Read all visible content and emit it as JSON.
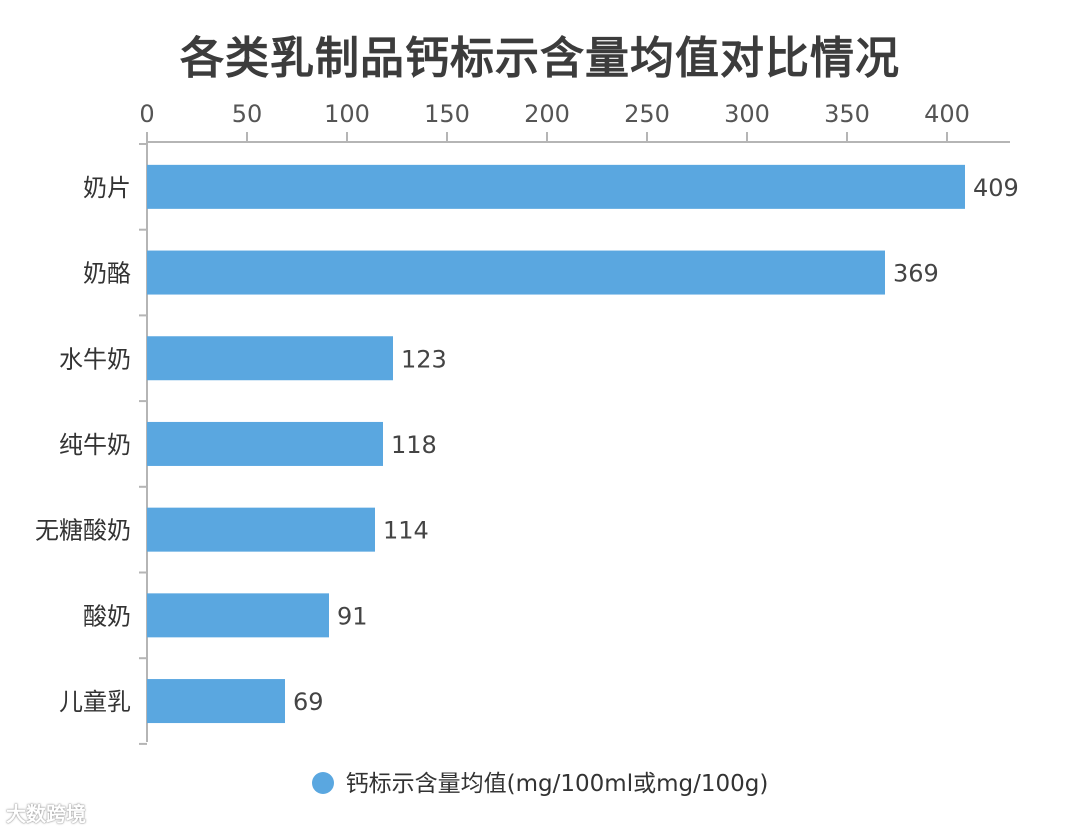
{
  "chart_data": {
    "type": "bar",
    "orientation": "horizontal",
    "title": "各类乳制品钙标示含量均值对比情况",
    "categories": [
      "奶片",
      "奶酪",
      "水牛奶",
      "纯牛奶",
      "无糖酸奶",
      "酸奶",
      "儿童乳"
    ],
    "series": [
      {
        "name": "钙标示含量均值(mg/100ml或mg/100g)",
        "values": [
          409,
          369,
          123,
          118,
          114,
          91,
          69
        ],
        "color": "#5aa7e0"
      }
    ],
    "xticks": [
      0,
      50,
      100,
      150,
      200,
      250,
      300,
      350,
      400
    ],
    "xlim": [
      0,
      430
    ],
    "axis_position": "top",
    "grid": false,
    "legend_position": "bottom"
  },
  "watermark": {
    "text": "大数跨境"
  }
}
